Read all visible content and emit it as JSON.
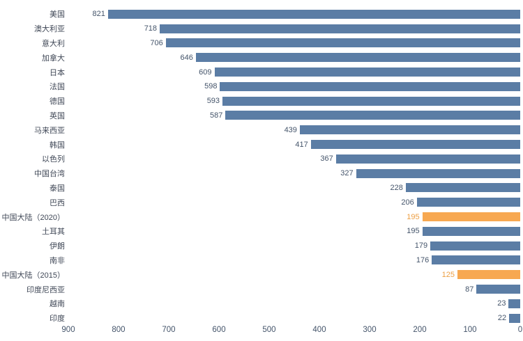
{
  "chart_data": {
    "type": "bar",
    "orientation": "horizontal",
    "x_axis_reversed": true,
    "xlim": [
      0,
      900
    ],
    "axis_ticks": [
      900,
      800,
      700,
      600,
      500,
      400,
      300,
      200,
      100,
      0
    ],
    "grid": false,
    "items": [
      {
        "label": "美国",
        "value": 821,
        "highlight": false
      },
      {
        "label": "澳大利亚",
        "value": 718,
        "highlight": false
      },
      {
        "label": "意大利",
        "value": 706,
        "highlight": false
      },
      {
        "label": "加拿大",
        "value": 646,
        "highlight": false
      },
      {
        "label": "日本",
        "value": 609,
        "highlight": false
      },
      {
        "label": "法国",
        "value": 598,
        "highlight": false
      },
      {
        "label": "德国",
        "value": 593,
        "highlight": false
      },
      {
        "label": "英国",
        "value": 587,
        "highlight": false
      },
      {
        "label": "马来西亚",
        "value": 439,
        "highlight": false
      },
      {
        "label": "韩国",
        "value": 417,
        "highlight": false
      },
      {
        "label": "以色列",
        "value": 367,
        "highlight": false
      },
      {
        "label": "中国台湾",
        "value": 327,
        "highlight": false
      },
      {
        "label": "泰国",
        "value": 228,
        "highlight": false
      },
      {
        "label": "巴西",
        "value": 206,
        "highlight": false
      },
      {
        "label": "中国大陆（2020）",
        "value": 195,
        "highlight": true
      },
      {
        "label": "土耳其",
        "value": 195,
        "highlight": false
      },
      {
        "label": "伊朗",
        "value": 179,
        "highlight": false
      },
      {
        "label": "南非",
        "value": 176,
        "highlight": false
      },
      {
        "label": "中国大陆（2015）",
        "value": 125,
        "highlight": true
      },
      {
        "label": "印度尼西亚",
        "value": 87,
        "highlight": false
      },
      {
        "label": "越南",
        "value": 23,
        "highlight": false
      },
      {
        "label": "印度",
        "value": 22,
        "highlight": false
      }
    ],
    "colors": {
      "bar": "#5B7DA5",
      "bar_highlight": "#F7A851",
      "value_label": "#44546A",
      "value_label_highlight": "#ED9F43",
      "category_label": "#3F4756",
      "axis_label": "#44546A"
    }
  }
}
